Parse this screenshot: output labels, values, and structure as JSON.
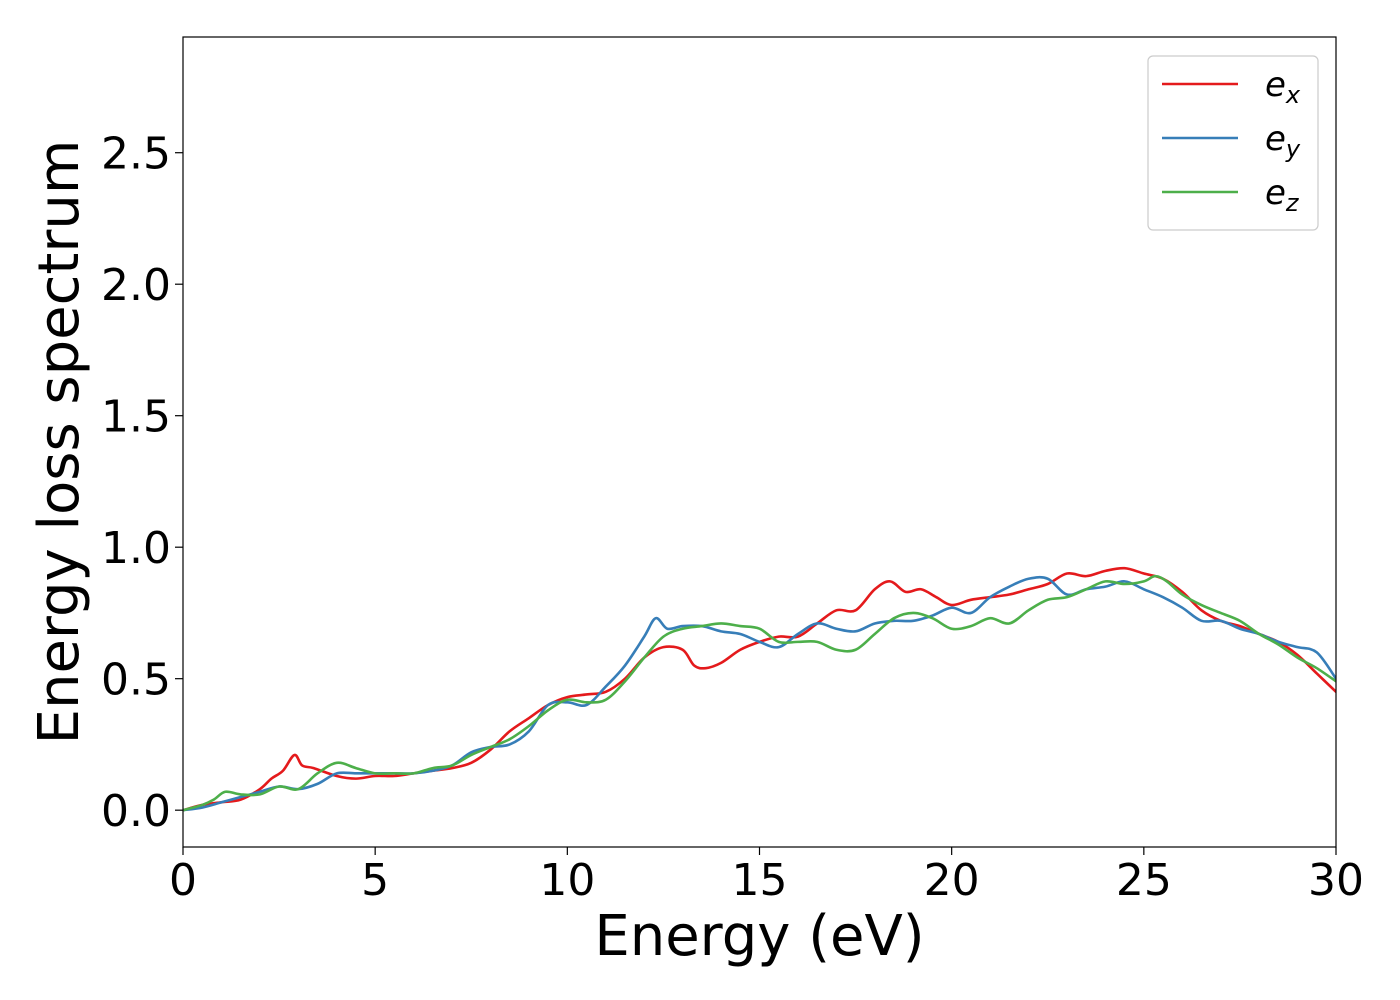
{
  "chart_data": {
    "type": "line",
    "title": "",
    "xlabel": "Energy (eV)",
    "ylabel": "Energy loss spectrum",
    "xlim": [
      0,
      30
    ],
    "ylim": [
      -0.14,
      2.94
    ],
    "xticks": [
      0,
      5,
      10,
      15,
      20,
      25,
      30
    ],
    "xtick_labels": [
      "0",
      "5",
      "10",
      "15",
      "20",
      "25",
      "30"
    ],
    "yticks": [
      0.0,
      0.5,
      1.0,
      1.5,
      2.0,
      2.5
    ],
    "ytick_labels": [
      "0.0",
      "0.5",
      "1.0",
      "1.5",
      "2.0",
      "2.5"
    ],
    "grid": false,
    "legend_position": "top-right",
    "series": [
      {
        "name": "e_x",
        "label_base": "e",
        "label_sub": "x",
        "color": "#e41a1c",
        "x": [
          0,
          0.5,
          1.0,
          1.5,
          2.0,
          2.3,
          2.6,
          2.9,
          3.1,
          3.4,
          4.0,
          4.5,
          5.0,
          5.5,
          6.0,
          6.5,
          7.0,
          7.5,
          8.0,
          8.5,
          9.0,
          9.5,
          10.0,
          10.5,
          11.0,
          11.5,
          12.0,
          12.5,
          13.0,
          13.3,
          13.6,
          14.0,
          14.5,
          15.0,
          15.5,
          16.0,
          16.5,
          17.0,
          17.5,
          18.0,
          18.4,
          18.8,
          19.2,
          19.6,
          20.0,
          20.5,
          21.0,
          21.5,
          22.0,
          22.5,
          23.0,
          23.5,
          24.0,
          24.5,
          25.0,
          25.5,
          26.0,
          26.5,
          27.0,
          27.5,
          28.0,
          28.5,
          29.0,
          29.5,
          30.0
        ],
        "y": [
          0.0,
          0.02,
          0.03,
          0.04,
          0.08,
          0.12,
          0.15,
          0.21,
          0.17,
          0.16,
          0.13,
          0.12,
          0.13,
          0.13,
          0.14,
          0.15,
          0.16,
          0.18,
          0.23,
          0.3,
          0.35,
          0.4,
          0.43,
          0.44,
          0.45,
          0.5,
          0.58,
          0.62,
          0.61,
          0.55,
          0.54,
          0.56,
          0.61,
          0.64,
          0.66,
          0.66,
          0.71,
          0.76,
          0.76,
          0.84,
          0.87,
          0.83,
          0.84,
          0.81,
          0.78,
          0.8,
          0.81,
          0.82,
          0.84,
          0.86,
          0.9,
          0.89,
          0.91,
          0.92,
          0.9,
          0.88,
          0.83,
          0.76,
          0.72,
          0.7,
          0.67,
          0.64,
          0.59,
          0.52,
          0.45
        ]
      },
      {
        "name": "e_y",
        "label_base": "e",
        "label_sub": "y",
        "color": "#377eb8",
        "x": [
          0,
          0.5,
          1.0,
          1.5,
          2.0,
          2.5,
          3.0,
          3.5,
          4.0,
          4.5,
          5.0,
          5.5,
          6.0,
          6.5,
          7.0,
          7.5,
          8.0,
          8.5,
          9.0,
          9.5,
          10.0,
          10.5,
          11.0,
          11.5,
          12.0,
          12.3,
          12.6,
          13.0,
          13.5,
          14.0,
          14.5,
          15.0,
          15.5,
          16.0,
          16.5,
          17.0,
          17.5,
          18.0,
          18.5,
          19.0,
          19.5,
          20.0,
          20.5,
          21.0,
          21.5,
          22.0,
          22.5,
          23.0,
          23.5,
          24.0,
          24.5,
          25.0,
          25.5,
          26.0,
          26.5,
          27.0,
          27.5,
          28.0,
          28.5,
          29.0,
          29.5,
          30.0
        ],
        "y": [
          0.0,
          0.01,
          0.03,
          0.05,
          0.07,
          0.09,
          0.08,
          0.1,
          0.14,
          0.14,
          0.14,
          0.14,
          0.14,
          0.15,
          0.17,
          0.22,
          0.24,
          0.25,
          0.3,
          0.4,
          0.41,
          0.4,
          0.47,
          0.55,
          0.66,
          0.73,
          0.69,
          0.7,
          0.7,
          0.68,
          0.67,
          0.64,
          0.62,
          0.67,
          0.71,
          0.69,
          0.68,
          0.71,
          0.72,
          0.72,
          0.74,
          0.77,
          0.75,
          0.81,
          0.85,
          0.88,
          0.88,
          0.82,
          0.84,
          0.85,
          0.87,
          0.84,
          0.81,
          0.77,
          0.72,
          0.72,
          0.69,
          0.67,
          0.64,
          0.62,
          0.6,
          0.5
        ]
      },
      {
        "name": "e_z",
        "label_base": "e",
        "label_sub": "z",
        "color": "#4daf4a",
        "x": [
          0,
          0.5,
          0.8,
          1.1,
          1.5,
          2.0,
          2.5,
          3.0,
          3.5,
          4.0,
          4.5,
          5.0,
          5.5,
          6.0,
          6.5,
          7.0,
          7.5,
          8.0,
          8.5,
          9.0,
          9.5,
          10.0,
          10.5,
          11.0,
          11.5,
          12.0,
          12.5,
          13.0,
          13.5,
          14.0,
          14.5,
          15.0,
          15.5,
          16.0,
          16.5,
          17.0,
          17.5,
          18.0,
          18.5,
          19.0,
          19.5,
          20.0,
          20.5,
          21.0,
          21.5,
          22.0,
          22.5,
          23.0,
          23.5,
          24.0,
          24.5,
          25.0,
          25.3,
          25.6,
          26.0,
          26.5,
          27.0,
          27.5,
          28.0,
          28.5,
          29.0,
          29.5,
          30.0
        ],
        "y": [
          0.0,
          0.02,
          0.04,
          0.07,
          0.06,
          0.06,
          0.09,
          0.08,
          0.14,
          0.18,
          0.16,
          0.14,
          0.14,
          0.14,
          0.16,
          0.17,
          0.21,
          0.24,
          0.27,
          0.32,
          0.38,
          0.42,
          0.41,
          0.42,
          0.49,
          0.58,
          0.66,
          0.69,
          0.7,
          0.71,
          0.7,
          0.69,
          0.64,
          0.64,
          0.64,
          0.61,
          0.61,
          0.67,
          0.73,
          0.75,
          0.73,
          0.69,
          0.7,
          0.73,
          0.71,
          0.76,
          0.8,
          0.81,
          0.84,
          0.87,
          0.86,
          0.87,
          0.89,
          0.87,
          0.82,
          0.78,
          0.75,
          0.72,
          0.67,
          0.63,
          0.58,
          0.54,
          0.49
        ]
      }
    ]
  }
}
